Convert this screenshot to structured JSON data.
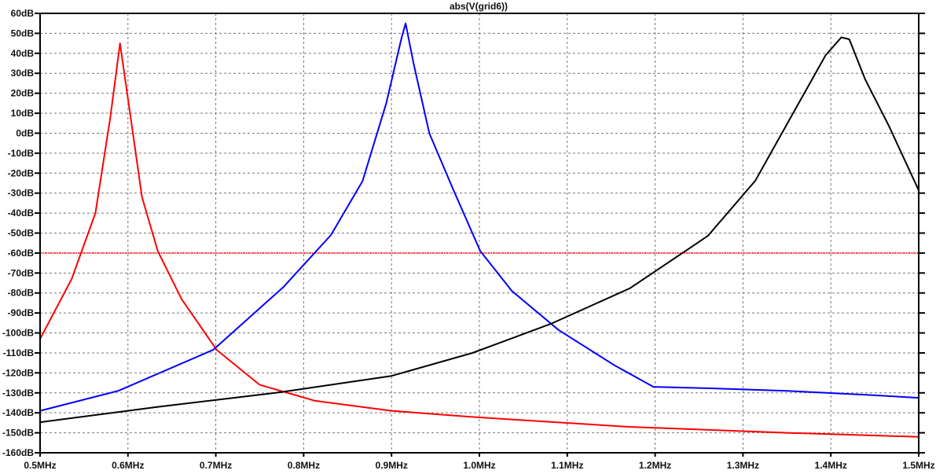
{
  "chart_data": {
    "type": "line",
    "title": "abs(V(grid6))",
    "xlabel": "",
    "ylabel": "",
    "xlim": [
      0.5,
      1.5
    ],
    "ylim": [
      -160,
      60
    ],
    "x_unit": "MHz",
    "y_unit": "dB",
    "grid": true,
    "x_ticks": [
      "0.5MHz",
      "0.6MHz",
      "0.7MHz",
      "0.8MHz",
      "0.9MHz",
      "1.0MHz",
      "1.1MHz",
      "1.2MHz",
      "1.3MHz",
      "1.4MHz",
      "1.5MHz"
    ],
    "y_ticks": [
      "60dB",
      "50dB",
      "40dB",
      "30dB",
      "20dB",
      "10dB",
      "0dB",
      "-10dB",
      "-20dB",
      "-30dB",
      "-40dB",
      "-50dB",
      "-60dB",
      "-70dB",
      "-80dB",
      "-90dB",
      "-100dB",
      "-110dB",
      "-120dB",
      "-130dB",
      "-140dB",
      "-150dB",
      "-160dB"
    ],
    "reference_line": {
      "y": -60,
      "color": "#ff0000",
      "style": "dotted"
    },
    "series": [
      {
        "color": "#ff0000",
        "points": [
          [
            0.5,
            -103
          ],
          [
            0.536,
            -73
          ],
          [
            0.563,
            -40
          ],
          [
            0.58,
            8
          ],
          [
            0.591,
            45
          ],
          [
            0.603,
            8
          ],
          [
            0.616,
            -32
          ],
          [
            0.634,
            -59
          ],
          [
            0.661,
            -83
          ],
          [
            0.701,
            -108.5
          ],
          [
            0.75,
            -126
          ],
          [
            0.813,
            -134
          ],
          [
            0.9,
            -139
          ],
          [
            0.99,
            -142
          ],
          [
            1.17,
            -147
          ],
          [
            1.35,
            -150
          ],
          [
            1.5,
            -152
          ]
        ]
      },
      {
        "color": "#0000ff",
        "points": [
          [
            0.5,
            -139
          ],
          [
            0.589,
            -129
          ],
          [
            0.697,
            -108.5
          ],
          [
            0.777,
            -77
          ],
          [
            0.831,
            -51
          ],
          [
            0.867,
            -24
          ],
          [
            0.894,
            15
          ],
          [
            0.911,
            47
          ],
          [
            0.916,
            55
          ],
          [
            0.925,
            35
          ],
          [
            0.943,
            0
          ],
          [
            0.97,
            -28
          ],
          [
            1.001,
            -59
          ],
          [
            1.037,
            -79
          ],
          [
            1.09,
            -98.5
          ],
          [
            1.153,
            -116
          ],
          [
            1.198,
            -127
          ],
          [
            1.26,
            -127.7
          ],
          [
            1.35,
            -129
          ],
          [
            1.44,
            -131
          ],
          [
            1.5,
            -132.5
          ]
        ]
      },
      {
        "color": "#000000",
        "points": [
          [
            0.5,
            -144.7
          ],
          [
            0.634,
            -137
          ],
          [
            0.768,
            -130
          ],
          [
            0.9,
            -121.5
          ],
          [
            0.992,
            -110
          ],
          [
            1.081,
            -95.5
          ],
          [
            1.171,
            -77.7
          ],
          [
            1.26,
            -51.4
          ],
          [
            1.314,
            -23.8
          ],
          [
            1.359,
            11.6
          ],
          [
            1.394,
            39
          ],
          [
            1.412,
            48
          ],
          [
            1.421,
            47
          ],
          [
            1.439,
            27
          ],
          [
            1.466,
            3.7
          ],
          [
            1.5,
            -28.6
          ]
        ]
      }
    ]
  }
}
